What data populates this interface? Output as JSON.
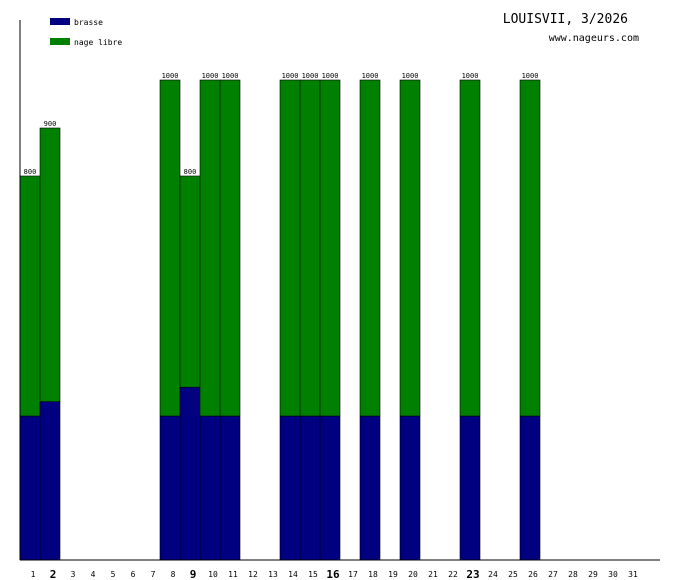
{
  "chart_data": {
    "type": "bar",
    "stacked": true,
    "title": "LOUISVII, 3/2026",
    "subtitle": "www.nageurs.com",
    "legend_position": "top-left",
    "categories": [
      "1",
      "2",
      "3",
      "4",
      "5",
      "6",
      "7",
      "8",
      "9",
      "10",
      "11",
      "12",
      "13",
      "14",
      "15",
      "16",
      "17",
      "18",
      "19",
      "20",
      "21",
      "22",
      "23",
      "24",
      "25",
      "26",
      "27",
      "28",
      "29",
      "30",
      "31"
    ],
    "bold_categories": [
      "2",
      "9",
      "16",
      "23"
    ],
    "ylim": [
      0,
      1200
    ],
    "series": [
      {
        "name": "brasse",
        "color": "#000080",
        "values": [
          300,
          330,
          0,
          0,
          0,
          0,
          0,
          300,
          360,
          300,
          300,
          0,
          0,
          300,
          300,
          300,
          0,
          300,
          0,
          300,
          0,
          0,
          300,
          0,
          0,
          300,
          0,
          0,
          0,
          0,
          0
        ]
      },
      {
        "name": "nage libre",
        "color": "#008000",
        "values": [
          500,
          570,
          0,
          0,
          0,
          0,
          0,
          700,
          440,
          700,
          700,
          0,
          0,
          700,
          700,
          700,
          0,
          700,
          0,
          700,
          0,
          0,
          700,
          0,
          0,
          700,
          0,
          0,
          0,
          0,
          0
        ]
      }
    ],
    "totals": [
      800,
      900,
      0,
      0,
      0,
      0,
      0,
      1000,
      800,
      1000,
      1000,
      0,
      0,
      1000,
      1000,
      1000,
      0,
      1000,
      0,
      1000,
      0,
      0,
      1000,
      0,
      0,
      1000,
      0,
      0,
      0,
      0,
      0
    ]
  }
}
